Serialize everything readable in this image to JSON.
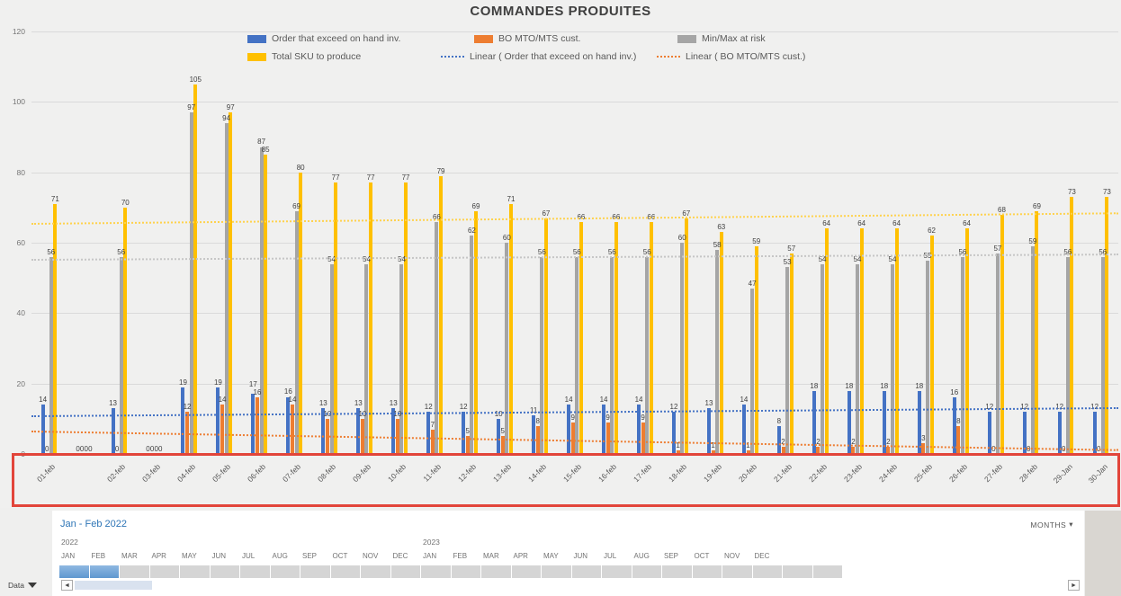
{
  "chart_data": {
    "type": "bar",
    "title": "COMMANDES PRODUITES",
    "ylim": [
      0,
      120
    ],
    "yticks": [
      0,
      20,
      40,
      60,
      80,
      100,
      120
    ],
    "grid": true,
    "legend_position": "top",
    "categories": [
      "01-feb",
      "",
      "02-feb",
      "03-feb",
      "04-feb",
      "05-feb",
      "06-feb",
      "07-feb",
      "08-feb",
      "09-feb",
      "10-feb",
      "11-feb",
      "12-feb",
      "13-feb",
      "14-feb",
      "15-feb",
      "16-feb",
      "17-feb",
      "18-feb",
      "19-feb",
      "20-feb",
      "21-feb",
      "22-feb",
      "23-feb",
      "24-feb",
      "25-feb",
      "26-feb",
      "27-feb",
      "28-feb",
      "29-Jan",
      "30-Jan"
    ],
    "series": [
      {
        "name": "Order that exceed on hand inv.",
        "color": "#4472C4",
        "values": [
          14,
          0,
          13,
          0,
          19,
          19,
          17,
          16,
          13,
          13,
          13,
          12,
          12,
          10,
          11,
          14,
          14,
          14,
          12,
          13,
          14,
          8,
          18,
          18,
          18,
          18,
          16,
          12,
          12,
          12,
          12
        ]
      },
      {
        "name": "BO MTO/MTS cust.",
        "color": "#ED7D31",
        "values": [
          0,
          0,
          0,
          0,
          12,
          14,
          16,
          14,
          10,
          10,
          10,
          7,
          5,
          5,
          8,
          9,
          9,
          9,
          1,
          1,
          1,
          2,
          2,
          2,
          2,
          3,
          8,
          0,
          0,
          0,
          0
        ]
      },
      {
        "name": "Min/Max at risk",
        "color": "#A5A5A5",
        "values": [
          56,
          0,
          56,
          0,
          97,
          94,
          87,
          69,
          54,
          54,
          54,
          66,
          62,
          60,
          56,
          56,
          56,
          56,
          60,
          58,
          47,
          53,
          54,
          54,
          54,
          55,
          56,
          57,
          59,
          56,
          56
        ]
      },
      {
        "name": "Total SKU to produce",
        "color": "#FFC000",
        "values": [
          71,
          0,
          70,
          0,
          105,
          97,
          85,
          80,
          77,
          77,
          77,
          79,
          69,
          71,
          67,
          66,
          66,
          66,
          67,
          63,
          59,
          57,
          64,
          64,
          64,
          62,
          64,
          68,
          69,
          73,
          73
        ]
      }
    ],
    "trendlines": [
      {
        "name": "trend-total-sku",
        "color": "#ffd24d",
        "start": 65.5,
        "end": 68.5
      },
      {
        "name": "trend-minmax",
        "color": "#c6c6c6",
        "start": 55.5,
        "end": 57
      },
      {
        "name": "Linear ( Order that exceed on hand inv.)",
        "color": "#4472C4",
        "start": 11,
        "end": 13.3
      },
      {
        "name": "Linear ( BO MTO/MTS cust.)",
        "color": "#ED7D31",
        "start": 6.6,
        "end": 1.3
      }
    ],
    "legend": [
      {
        "label": "Order that exceed on hand inv.",
        "style": "bar",
        "color": "#4472C4"
      },
      {
        "label": "BO MTO/MTS cust.",
        "style": "bar",
        "color": "#ED7D31"
      },
      {
        "label": "Min/Max at risk",
        "style": "bar",
        "color": "#A5A5A5"
      },
      {
        "label": "Total SKU to produce",
        "style": "bar",
        "color": "#FFC000"
      },
      {
        "label": "Linear ( Order that exceed on hand inv.)",
        "style": "dotted",
        "color": "#4472C4"
      },
      {
        "label": "Linear ( BO MTO/MTS cust.)",
        "style": "dotted",
        "color": "#ED7D31"
      }
    ]
  },
  "annotation": {
    "shape": "rectangle",
    "color": "#e2453a",
    "target": "date-axis"
  },
  "timeline": {
    "header": "Jan - Feb 2022",
    "period_label": "MONTHS",
    "period_caret": "▾",
    "years": [
      {
        "label": "2022",
        "month_index": 0
      },
      {
        "label": "2023",
        "month_index": 12
      }
    ],
    "months": [
      "JAN",
      "FEB",
      "MAR",
      "APR",
      "MAY",
      "JUN",
      "JUL",
      "AUG",
      "SEP",
      "OCT",
      "NOV",
      "DEC",
      "JAN",
      "FEB",
      "MAR",
      "APR",
      "MAY",
      "JUN",
      "JUL",
      "AUG",
      "SEP",
      "OCT",
      "NOV",
      "DEC"
    ],
    "selected_cells": [
      0,
      1
    ],
    "scrollbar": {
      "left_arrow": "◄",
      "right_arrow": "►"
    }
  },
  "sheet": {
    "data_button": "Data"
  }
}
